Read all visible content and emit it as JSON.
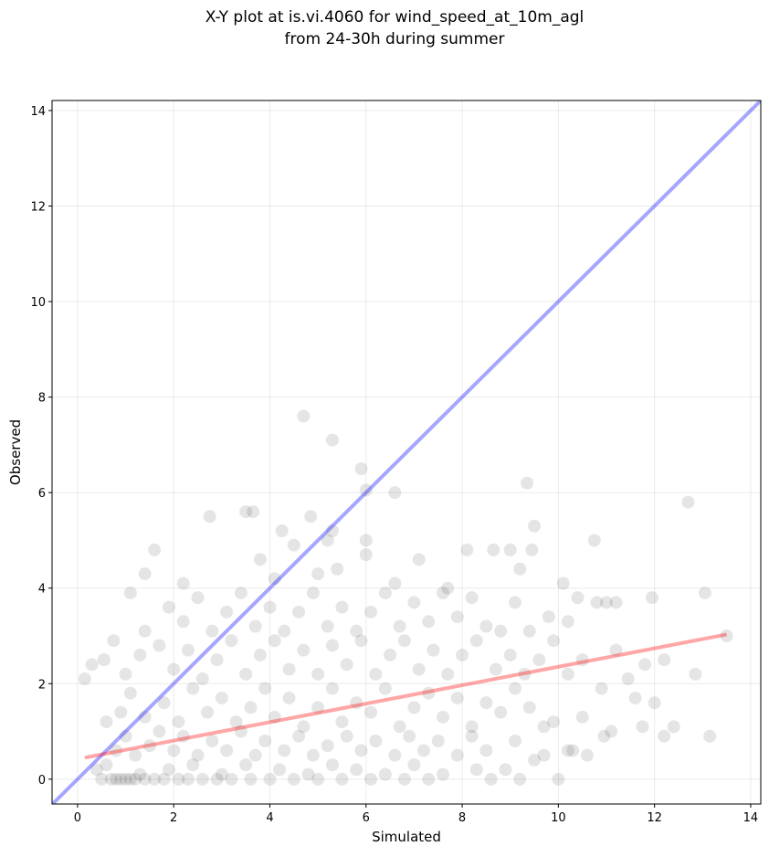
{
  "chart_data": {
    "type": "scatter",
    "title": [
      "X-Y plot at is.vi.4060 for wind_speed_at_10m_agl",
      "from 24-30h during summer"
    ],
    "x_label": "Simulated",
    "y_label": "Observed",
    "xlim": [
      -0.53,
      14.21
    ],
    "ylim": [
      -0.52,
      14.21
    ],
    "xticks": [
      0,
      2,
      4,
      6,
      8,
      10,
      12,
      14
    ],
    "yticks": [
      0,
      2,
      4,
      6,
      8,
      10,
      12,
      14
    ],
    "grid": true,
    "color": "#000000",
    "x": [
      0.5,
      0.7,
      0.8,
      0.9,
      1.0,
      1.1,
      1.2,
      1.4,
      1.6,
      1.8,
      2.1,
      2.3,
      2.6,
      2.9,
      3.2,
      3.6,
      4.0,
      4.5,
      5.0,
      5.5,
      6.1,
      6.8,
      7.3,
      8.6,
      9.2,
      10.0,
      0.4,
      0.6,
      1.3,
      1.9,
      2.4,
      3.0,
      3.5,
      4.2,
      4.8,
      5.3,
      5.8,
      6.4,
      7.0,
      7.6,
      8.3,
      8.9,
      9.5,
      10.3,
      0.8,
      1.0,
      1.2,
      1.5,
      1.7,
      2.0,
      2.2,
      2.5,
      2.8,
      3.1,
      3.4,
      3.7,
      3.9,
      4.3,
      4.6,
      4.9,
      5.2,
      5.6,
      5.9,
      6.2,
      6.6,
      6.9,
      7.2,
      7.5,
      7.9,
      8.2,
      8.5,
      9.1,
      9.7,
      10.2,
      10.6,
      0.6,
      0.9,
      1.1,
      1.4,
      1.8,
      2.1,
      2.4,
      2.7,
      3.0,
      3.3,
      3.6,
      3.9,
      4.1,
      4.4,
      4.7,
      5.0,
      5.3,
      5.5,
      5.8,
      6.1,
      6.4,
      6.7,
      7.0,
      7.3,
      7.6,
      7.9,
      8.2,
      8.5,
      8.8,
      9.1,
      9.4,
      9.7,
      9.9,
      0.3,
      0.15,
      1.0,
      1.3,
      1.7,
      2.0,
      2.3,
      2.6,
      2.9,
      3.2,
      3.5,
      3.8,
      4.1,
      4.4,
      4.7,
      5.0,
      5.3,
      5.6,
      5.9,
      6.2,
      6.5,
      6.8,
      7.1,
      7.4,
      7.7,
      8.0,
      8.3,
      8.7,
      9.0,
      9.3,
      9.6,
      9.9,
      10.2,
      10.5,
      0.75,
      1.1,
      1.4,
      1.9,
      2.2,
      2.5,
      2.8,
      3.1,
      3.4,
      3.7,
      4.0,
      4.3,
      4.6,
      4.9,
      5.2,
      5.5,
      5.8,
      6.1,
      6.4,
      6.7,
      7.0,
      7.3,
      7.6,
      7.9,
      8.2,
      8.5,
      8.8,
      9.1,
      9.4,
      9.8,
      10.2,
      10.4,
      10.8,
      11.0,
      11.2,
      1.4,
      1.6,
      2.2,
      3.8,
      4.1,
      4.5,
      5.0,
      5.4,
      6.0,
      6.6,
      7.1,
      7.7,
      8.1,
      8.65,
      9.0,
      9.2,
      9.45,
      9.5,
      4.25,
      4.85,
      5.2,
      5.3,
      6.0,
      2.75,
      3.5,
      3.65,
      4.7,
      5.3,
      5.9,
      6.0,
      6.6,
      9.35,
      12.7,
      10.75,
      10.1,
      11.95,
      13.05,
      13.5,
      12.85,
      13.15,
      12.4,
      12.2,
      12.0,
      11.8,
      11.75,
      11.6,
      11.45,
      11.1,
      10.95,
      10.9,
      10.5,
      11.2,
      12.2,
      0.55
    ],
    "y": [
      0,
      0,
      0,
      0,
      0,
      0,
      0,
      0,
      0,
      0,
      0,
      0,
      0,
      0,
      0,
      0,
      0,
      0,
      0,
      0,
      0,
      0,
      0,
      0,
      0,
      0,
      0.2,
      0.3,
      0.1,
      0.2,
      0.3,
      0.1,
      0.3,
      0.2,
      0.1,
      0.3,
      0.2,
      0.1,
      0.3,
      0.1,
      0.2,
      0.2,
      0.4,
      0.6,
      0.6,
      0.9,
      0.5,
      0.7,
      1.0,
      0.6,
      0.9,
      0.5,
      0.8,
      0.6,
      1.0,
      0.5,
      0.8,
      0.6,
      0.9,
      0.5,
      0.7,
      0.9,
      0.6,
      0.8,
      0.5,
      0.9,
      0.6,
      0.8,
      0.5,
      0.9,
      0.6,
      0.8,
      0.5,
      0.6,
      0.5,
      1.2,
      1.4,
      1.8,
      1.3,
      1.6,
      1.2,
      1.9,
      1.4,
      1.7,
      1.2,
      1.5,
      1.9,
      1.3,
      1.7,
      1.1,
      1.5,
      1.9,
      1.2,
      1.6,
      1.4,
      1.9,
      1.1,
      1.5,
      1.8,
      1.3,
      1.7,
      1.1,
      1.6,
      1.4,
      1.9,
      1.5,
      1.1,
      1.2,
      2.4,
      2.1,
      2.2,
      2.6,
      2.8,
      2.3,
      2.7,
      2.1,
      2.5,
      2.9,
      2.2,
      2.6,
      2.9,
      2.3,
      2.7,
      2.2,
      2.8,
      2.4,
      2.9,
      2.2,
      2.6,
      2.9,
      2.3,
      2.7,
      2.2,
      2.6,
      2.9,
      2.3,
      2.6,
      2.2,
      2.5,
      2.9,
      2.2,
      2.5,
      2.9,
      3.9,
      3.1,
      3.6,
      3.3,
      3.8,
      3.1,
      3.5,
      3.9,
      3.2,
      3.6,
      3.1,
      3.5,
      3.9,
      3.2,
      3.6,
      3.1,
      3.5,
      3.9,
      3.2,
      3.7,
      3.3,
      3.9,
      3.4,
      3.8,
      3.2,
      3.1,
      3.7,
      3.1,
      3.4,
      3.3,
      3.8,
      3.7,
      3.7,
      3.7,
      4.3,
      4.8,
      4.1,
      4.6,
      4.2,
      4.9,
      4.3,
      4.4,
      4.7,
      4.1,
      4.6,
      4.0,
      4.8,
      4.8,
      4.8,
      4.4,
      4.8,
      5.3,
      5.2,
      5.5,
      5.0,
      5.2,
      5.0,
      5.5,
      5.6,
      5.6,
      7.6,
      7.1,
      6.5,
      6.05,
      6.0,
      6.2,
      5.8,
      5.0,
      4.1,
      3.8,
      3.9,
      3.0,
      2.2,
      0.9,
      1.1,
      0.9,
      1.6,
      2.4,
      1.1,
      1.7,
      2.1,
      1.0,
      0.9,
      1.9,
      1.3,
      2.7,
      2.5,
      2.5
    ],
    "lines": [
      {
        "color": "#0000ff",
        "x": [
          -0.53,
          14.21
        ],
        "y": [
          -0.53,
          14.21
        ]
      },
      {
        "color": "#ff0000",
        "x": [
          0.15,
          13.5
        ],
        "y": [
          0.45,
          3.03
        ]
      }
    ]
  }
}
